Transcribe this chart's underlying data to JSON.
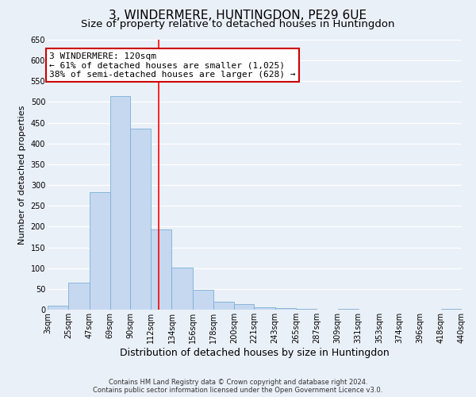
{
  "title": "3, WINDERMERE, HUNTINGDON, PE29 6UE",
  "subtitle": "Size of property relative to detached houses in Huntingdon",
  "xlabel": "Distribution of detached houses by size in Huntingdon",
  "ylabel": "Number of detached properties",
  "footer_lines": [
    "Contains HM Land Registry data © Crown copyright and database right 2024.",
    "Contains public sector information licensed under the Open Government Licence v3.0."
  ],
  "bin_edges": [
    3,
    25,
    47,
    69,
    90,
    112,
    134,
    156,
    178,
    200,
    221,
    243,
    265,
    287,
    309,
    331,
    353,
    374,
    396,
    418,
    440
  ],
  "bin_labels": [
    "3sqm",
    "25sqm",
    "47sqm",
    "69sqm",
    "90sqm",
    "112sqm",
    "134sqm",
    "156sqm",
    "178sqm",
    "200sqm",
    "221sqm",
    "243sqm",
    "265sqm",
    "287sqm",
    "309sqm",
    "331sqm",
    "353sqm",
    "374sqm",
    "396sqm",
    "418sqm",
    "440sqm"
  ],
  "counts": [
    10,
    65,
    283,
    515,
    435,
    193,
    102,
    47,
    20,
    13,
    5,
    3,
    1,
    0,
    1,
    0,
    0,
    0,
    0,
    2
  ],
  "bar_color": "#c5d8f0",
  "bar_edge_color": "#7bafd4",
  "property_line_x": 120,
  "annotation_text_line1": "3 WINDERMERE: 120sqm",
  "annotation_text_line2": "← 61% of detached houses are smaller (1,025)",
  "annotation_text_line3": "38% of semi-detached houses are larger (628) →",
  "annotation_box_color": "#ffffff",
  "annotation_box_edge_color": "#cc0000",
  "ylim": [
    0,
    650
  ],
  "yticks": [
    0,
    50,
    100,
    150,
    200,
    250,
    300,
    350,
    400,
    450,
    500,
    550,
    600,
    650
  ],
  "bg_color": "#eaf0f8",
  "grid_color": "#ffffff",
  "title_fontsize": 11,
  "subtitle_fontsize": 9.5,
  "xlabel_fontsize": 9,
  "ylabel_fontsize": 8,
  "tick_fontsize": 7,
  "annotation_fontsize": 8,
  "footer_fontsize": 6
}
